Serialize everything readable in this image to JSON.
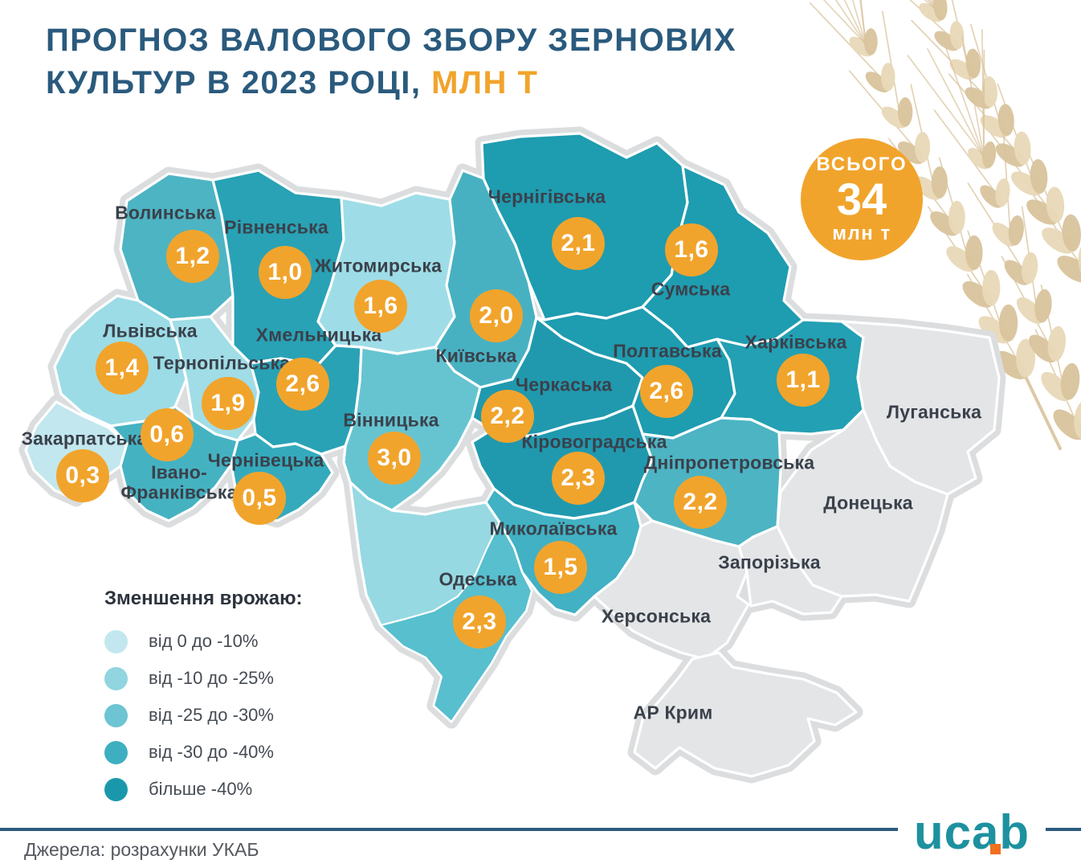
{
  "title": {
    "line1": "ПРОГНОЗ ВАЛОВОГО ЗБОРУ ЗЕРНОВИХ",
    "line2": "КУЛЬТУР В 2023 РОЦІ, ",
    "line2_accent": "МЛН Т"
  },
  "total_badge": {
    "label_top": "ВСЬОГО",
    "value": "34",
    "unit": "млн т"
  },
  "legend": {
    "title": "Зменшення врожаю:",
    "items": [
      {
        "label": "від 0 до -10%",
        "color": "#c2e7ee"
      },
      {
        "label": "від -10 до -25%",
        "color": "#90d5df"
      },
      {
        "label": "від -25 до -30%",
        "color": "#6dc4d2"
      },
      {
        "label": "від -30 до -40%",
        "color": "#3eafc0"
      },
      {
        "label": "більше -40%",
        "color": "#1a98ab"
      }
    ]
  },
  "map": {
    "unit": "млн т",
    "regions": [
      {
        "id": "volyn",
        "name": "Волинська",
        "value": "1,2",
        "color": "#4db4c3"
      },
      {
        "id": "rivne",
        "name": "Рівненська",
        "value": "1,0",
        "color": "#29a2b5"
      },
      {
        "id": "zhytomyr",
        "name": "Житомирська",
        "value": "1,6",
        "color": "#9edde7"
      },
      {
        "id": "kyiv",
        "name": "Київська",
        "value": "2,0",
        "color": "#47b1c2"
      },
      {
        "id": "chernihiv",
        "name": "Чернігівська",
        "value": "2,1",
        "color": "#1e9cb0"
      },
      {
        "id": "sumy",
        "name": "Сумська",
        "value": "1,6",
        "color": "#1e9cb0"
      },
      {
        "id": "lviv",
        "name": "Львівська",
        "value": "1,4",
        "color": "#9cdce6"
      },
      {
        "id": "ternopil",
        "name": "Тернопільська",
        "value": "1,9",
        "color": "#a0dde7"
      },
      {
        "id": "khmelnytskyi",
        "name": "Хмельницька",
        "value": "2,6",
        "color": "#29a2b5"
      },
      {
        "id": "vinnytsia",
        "name": "Вінницька",
        "value": "3,0",
        "color": "#66c4d1"
      },
      {
        "id": "cherkasy",
        "name": "Черкаська",
        "value": "2,2",
        "color": "#2099ae"
      },
      {
        "id": "poltava",
        "name": "Полтавська",
        "value": "2,6",
        "color": "#1e9cb0"
      },
      {
        "id": "kharkiv",
        "name": "Харківська",
        "value": "1,1",
        "color": "#23a0b3"
      },
      {
        "id": "zakarpattia",
        "name": "Закарпатська",
        "value": "0,3",
        "color": "#c2e7ee"
      },
      {
        "id": "ivano_frankivsk",
        "name": "Івано-\nФранківська",
        "value": "0,6",
        "color": "#45b2c2"
      },
      {
        "id": "chernivtsi",
        "name": "Чернівецька",
        "value": "0,5",
        "color": "#35aabc"
      },
      {
        "id": "kirovohrad",
        "name": "Кіровоградська",
        "value": "2,3",
        "color": "#2099ae"
      },
      {
        "id": "dnipro",
        "name": "Дніпропетровська",
        "value": "2,2",
        "color": "#4db4c3"
      },
      {
        "id": "mykolaiv",
        "name": "Миколаївська",
        "value": "1,5",
        "color": "#41b1c3"
      },
      {
        "id": "odesa",
        "name": "Одеська",
        "value": "2,3",
        "color": "#96d9e2",
        "color_south": "#57bfce"
      },
      {
        "id": "luhansk",
        "name": "Луганська",
        "value": null,
        "color": "#e4e5e7"
      },
      {
        "id": "donetsk",
        "name": "Донецька",
        "value": null,
        "color": "#e4e5e7"
      },
      {
        "id": "zaporizhzhia",
        "name": "Запорізька",
        "value": null,
        "color": "#e4e5e7"
      },
      {
        "id": "kherson",
        "name": "Херсонська",
        "value": null,
        "color": "#e4e5e7"
      },
      {
        "id": "crimea",
        "name": "АР Крим",
        "value": null,
        "color": "#e4e5e7"
      }
    ]
  },
  "footer": {
    "source": "Джерела: розрахунки УКАБ",
    "logo_text": "ucab"
  },
  "colors": {
    "accent_orange": "#f1a42c",
    "title_navy": "#2a5a7d",
    "label_dark": "#3a414b",
    "divider_navy": "#2b5b7e",
    "logo_teal": "#1d919f",
    "logo_orange": "#f0701d",
    "shadow_gray": "#dcdddf",
    "wheat_light": "#e8d8b8",
    "wheat_mid": "#d9c49d"
  }
}
